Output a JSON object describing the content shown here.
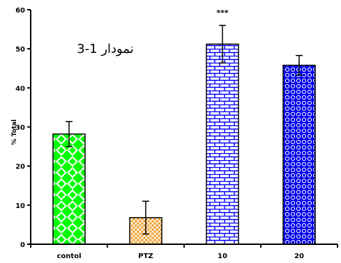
{
  "chart_data": {
    "type": "bar",
    "title": "نمودار 1-3",
    "xlabel": "",
    "ylabel": "% Total",
    "ylim": [
      0,
      60
    ],
    "yticks": [
      0,
      10,
      20,
      30,
      40,
      50,
      60
    ],
    "categories": [
      "contol",
      "PTZ",
      "10",
      "20"
    ],
    "values": [
      28.2,
      6.8,
      51.2,
      45.8
    ],
    "errors": [
      3.2,
      4.2,
      4.8,
      2.5
    ],
    "annotations": [
      {
        "category": "10",
        "text": "***"
      }
    ],
    "bar_styles": [
      {
        "fill": "#00ff00",
        "pattern": "diamond-checker",
        "pattern_color": "#ffffff"
      },
      {
        "fill": "#f0a030",
        "pattern": "crosshatch",
        "pattern_color": "#ffffff"
      },
      {
        "fill": "#ffffff",
        "pattern": "brick",
        "pattern_color": "#0000ff"
      },
      {
        "fill": "#0000ee",
        "pattern": "dots",
        "pattern_color": "#ffffff"
      }
    ],
    "grid": false
  }
}
